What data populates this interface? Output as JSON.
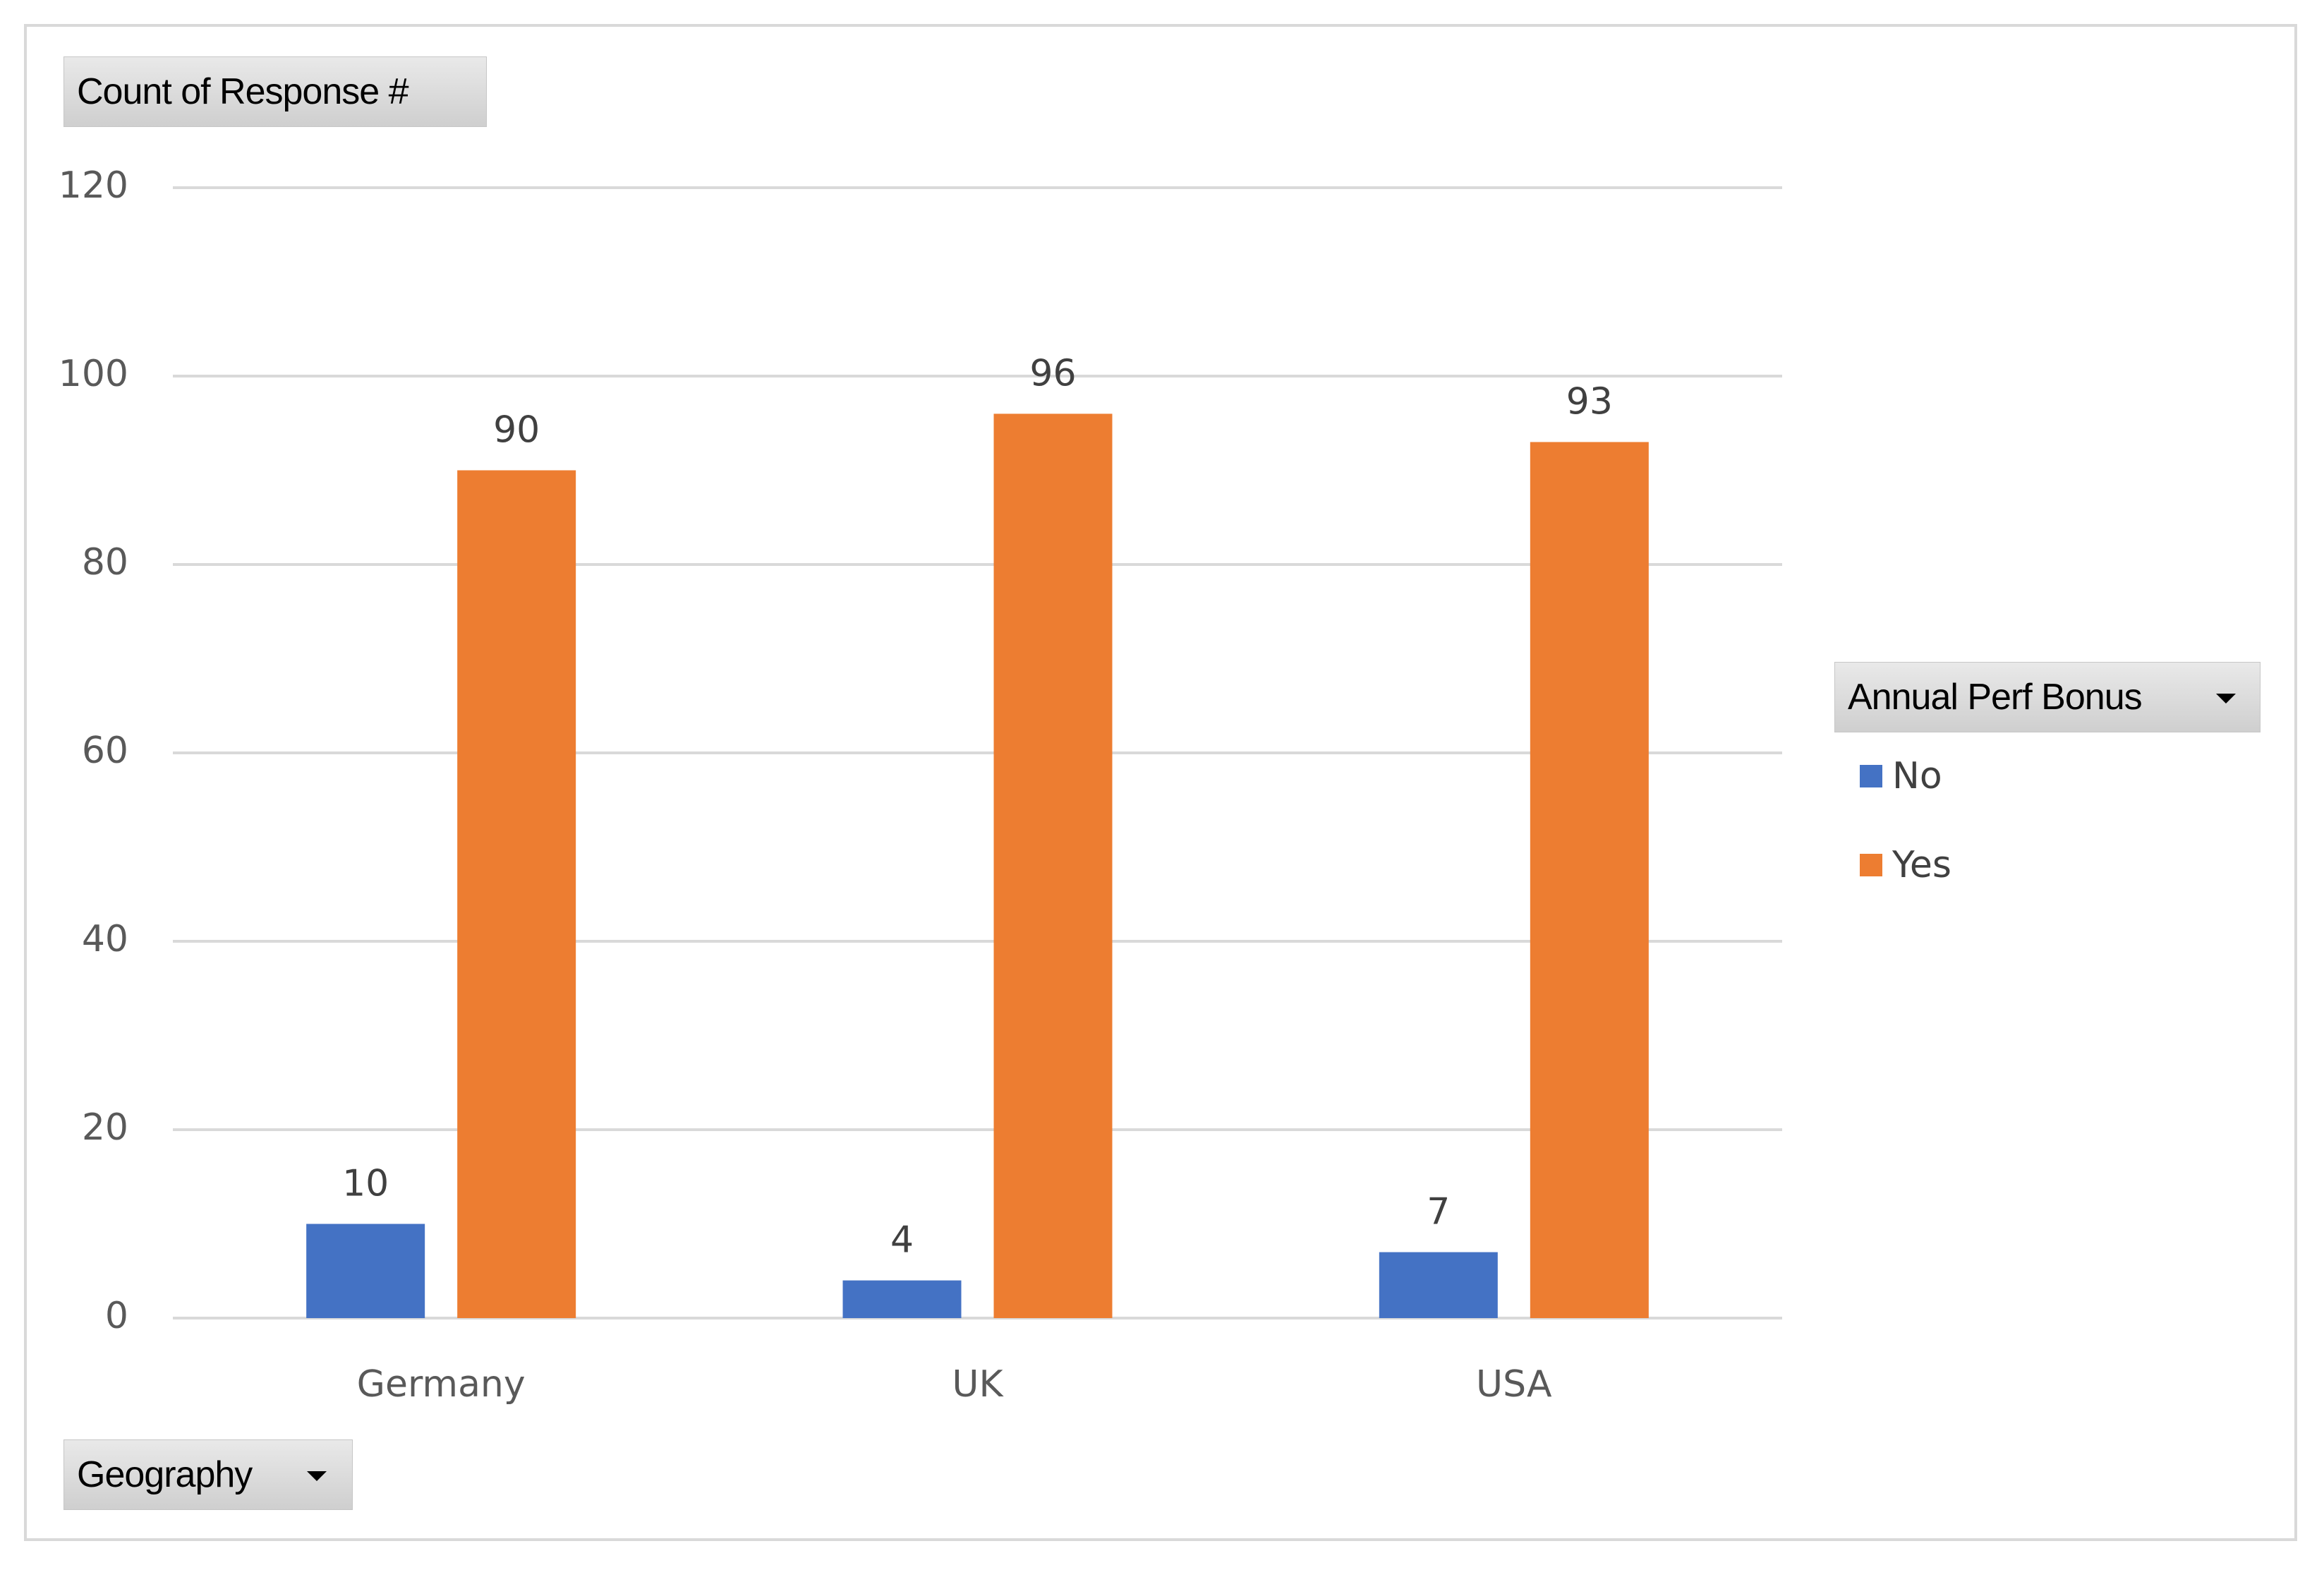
{
  "field_buttons": {
    "value_field": "Count of Response #",
    "axis_field": "Geography",
    "legend_field": "Annual Perf Bonus"
  },
  "icons": {
    "dropdown": "chevron-down-icon"
  },
  "colors": {
    "No": "#4472c4",
    "Yes": "#ed7d31",
    "grid": "#d9d9d9",
    "text": "#595959"
  },
  "chart_data": {
    "type": "bar",
    "title": "",
    "xlabel": "",
    "ylabel": "",
    "categories": [
      "Germany",
      "UK",
      "USA"
    ],
    "series": [
      {
        "name": "No",
        "values": [
          10,
          4,
          7
        ]
      },
      {
        "name": "Yes",
        "values": [
          90,
          96,
          93
        ]
      }
    ],
    "ylim": [
      0,
      120
    ],
    "yticks": [
      0,
      20,
      40,
      60,
      80,
      100,
      120
    ],
    "grid": true,
    "data_labels": true,
    "legend_placement": "right"
  }
}
